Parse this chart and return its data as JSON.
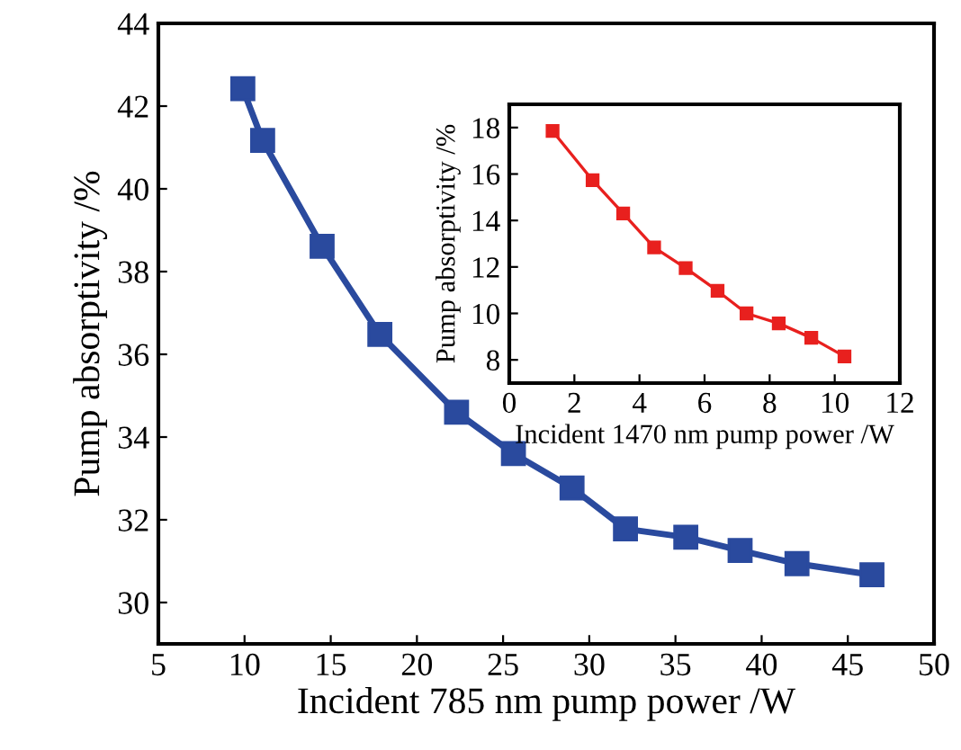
{
  "chart_data": [
    {
      "type": "line",
      "xlabel": "Incident 785 nm pump power /W",
      "ylabel": "Pump absorptivity /%",
      "marker": "square",
      "line_style": "solid",
      "grid": false,
      "legend": false,
      "x": [
        9.9,
        11.05,
        14.5,
        17.85,
        22.3,
        25.6,
        29.0,
        32.1,
        35.6,
        38.75,
        42.05,
        46.4
      ],
      "series": [
        {
          "color": "#2a4a9e",
          "values": [
            42.42,
            41.17,
            38.61,
            36.48,
            34.6,
            33.6,
            32.77,
            31.78,
            31.58,
            31.26,
            30.94,
            30.67
          ]
        }
      ],
      "xlim": [
        5,
        50
      ],
      "xticks": [
        5,
        10,
        15,
        20,
        25,
        30,
        35,
        40,
        45,
        50
      ],
      "ylim": [
        29,
        44
      ],
      "yticks": [
        30,
        32,
        34,
        36,
        38,
        40,
        42,
        44
      ]
    },
    {
      "type": "line",
      "xlabel": "Incident 1470 nm pump power /W",
      "ylabel": "Pump absorptivity /%",
      "marker": "square",
      "line_style": "solid",
      "grid": false,
      "legend": false,
      "x": [
        1.33,
        2.56,
        3.5,
        4.45,
        5.42,
        6.4,
        7.29,
        8.28,
        9.28,
        10.3
      ],
      "series": [
        {
          "color": "#e8201e",
          "values": [
            17.85,
            15.73,
            14.3,
            12.84,
            11.95,
            10.97,
            10.0,
            9.57,
            8.95,
            8.15
          ]
        }
      ],
      "xlim": [
        0,
        12
      ],
      "xticks": [
        0,
        2,
        4,
        6,
        8,
        10,
        12
      ],
      "ylim": [
        7,
        19
      ],
      "yticks": [
        8,
        10,
        12,
        14,
        16,
        18
      ]
    }
  ]
}
